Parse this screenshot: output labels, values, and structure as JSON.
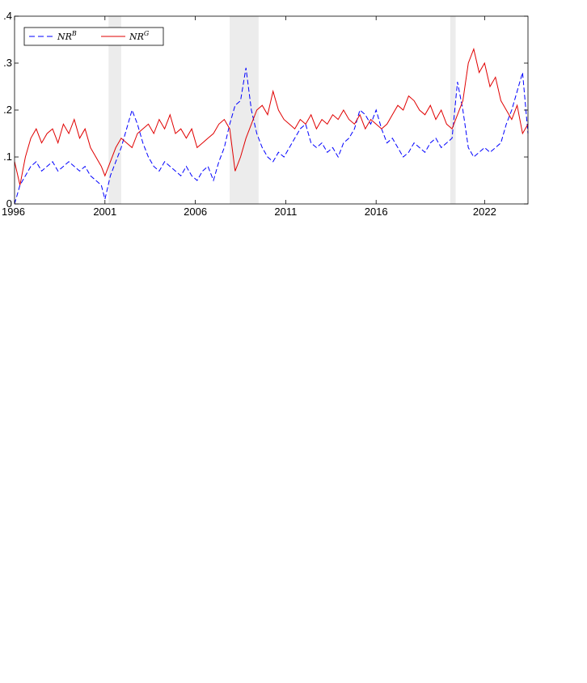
{
  "chart_data": {
    "type": "line",
    "title": "",
    "xlabel": "",
    "ylabel": "",
    "xlim": [
      1996,
      2024.4
    ],
    "ylim": [
      0,
      0.4
    ],
    "grid": false,
    "legend_position": "top-left",
    "x_ticks": [
      {
        "value": 1996,
        "label": "1996"
      },
      {
        "value": 2001,
        "label": "2001"
      },
      {
        "value": 2006,
        "label": "2006"
      },
      {
        "value": 2011,
        "label": "2011"
      },
      {
        "value": 2016,
        "label": "2016"
      },
      {
        "value": 2022,
        "label": "2022"
      }
    ],
    "y_ticks": [
      {
        "value": 0,
        "label": "0"
      },
      {
        "value": 0.1,
        "label": ".1"
      },
      {
        "value": 0.2,
        "label": ".2"
      },
      {
        "value": 0.3,
        "label": ".3"
      },
      {
        "value": 0.4,
        "label": ".4"
      }
    ],
    "shaded_periods": [
      {
        "start": 2001.2,
        "end": 2001.9
      },
      {
        "start": 2007.9,
        "end": 2009.5
      },
      {
        "start": 2020.1,
        "end": 2020.4
      }
    ],
    "shade_color": "#ececec",
    "series": [
      {
        "name": "NR",
        "name_superscript": "B",
        "color": "#0000ff",
        "dash": "dashed",
        "x": [
          1996.0,
          1996.3,
          1996.6,
          1996.9,
          1997.2,
          1997.5,
          1997.8,
          1998.1,
          1998.4,
          1998.7,
          1999.0,
          1999.3,
          1999.6,
          1999.9,
          2000.2,
          2000.5,
          2000.8,
          2001.0,
          2001.3,
          2001.6,
          2001.9,
          2002.2,
          2002.5,
          2002.8,
          2003.1,
          2003.4,
          2003.7,
          2004.0,
          2004.3,
          2004.6,
          2004.9,
          2005.2,
          2005.5,
          2005.8,
          2006.1,
          2006.4,
          2006.7,
          2007.0,
          2007.3,
          2007.6,
          2007.9,
          2008.2,
          2008.5,
          2008.8,
          2009.1,
          2009.4,
          2009.7,
          2010.0,
          2010.3,
          2010.6,
          2010.9,
          2011.2,
          2011.5,
          2011.8,
          2012.1,
          2012.4,
          2012.7,
          2013.0,
          2013.3,
          2013.6,
          2013.9,
          2014.2,
          2014.5,
          2014.8,
          2015.1,
          2015.4,
          2015.7,
          2016.0,
          2016.3,
          2016.6,
          2016.9,
          2017.2,
          2017.5,
          2017.8,
          2018.1,
          2018.4,
          2018.7,
          2019.0,
          2019.3,
          2019.6,
          2019.9,
          2020.2,
          2020.5,
          2020.8,
          2021.1,
          2021.4,
          2021.7,
          2022.0,
          2022.3,
          2022.6,
          2022.9,
          2023.2,
          2023.5,
          2023.8,
          2024.1,
          2024.4
        ],
        "values": [
          0.0,
          0.04,
          0.06,
          0.08,
          0.09,
          0.07,
          0.08,
          0.09,
          0.07,
          0.08,
          0.09,
          0.08,
          0.07,
          0.08,
          0.06,
          0.05,
          0.04,
          0.01,
          0.06,
          0.09,
          0.12,
          0.16,
          0.2,
          0.17,
          0.13,
          0.1,
          0.08,
          0.07,
          0.09,
          0.08,
          0.07,
          0.06,
          0.08,
          0.06,
          0.05,
          0.07,
          0.08,
          0.05,
          0.09,
          0.12,
          0.17,
          0.21,
          0.22,
          0.29,
          0.2,
          0.15,
          0.12,
          0.1,
          0.09,
          0.11,
          0.1,
          0.12,
          0.14,
          0.16,
          0.17,
          0.13,
          0.12,
          0.13,
          0.11,
          0.12,
          0.1,
          0.13,
          0.14,
          0.16,
          0.2,
          0.19,
          0.17,
          0.2,
          0.16,
          0.13,
          0.14,
          0.12,
          0.1,
          0.11,
          0.13,
          0.12,
          0.11,
          0.13,
          0.14,
          0.12,
          0.13,
          0.14,
          0.26,
          0.2,
          0.12,
          0.1,
          0.11,
          0.12,
          0.11,
          0.12,
          0.13,
          0.17,
          0.2,
          0.24,
          0.28,
          0.15
        ]
      },
      {
        "name": "NR",
        "name_superscript": "G",
        "color": "#e00000",
        "dash": "solid",
        "x": [
          1996.0,
          1996.3,
          1996.6,
          1996.9,
          1997.2,
          1997.5,
          1997.8,
          1998.1,
          1998.4,
          1998.7,
          1999.0,
          1999.3,
          1999.6,
          1999.9,
          2000.2,
          2000.5,
          2000.8,
          2001.0,
          2001.3,
          2001.6,
          2001.9,
          2002.2,
          2002.5,
          2002.8,
          2003.1,
          2003.4,
          2003.7,
          2004.0,
          2004.3,
          2004.6,
          2004.9,
          2005.2,
          2005.5,
          2005.8,
          2006.1,
          2006.4,
          2006.7,
          2007.0,
          2007.3,
          2007.6,
          2007.9,
          2008.2,
          2008.5,
          2008.8,
          2009.1,
          2009.4,
          2009.7,
          2010.0,
          2010.3,
          2010.6,
          2010.9,
          2011.2,
          2011.5,
          2011.8,
          2012.1,
          2012.4,
          2012.7,
          2013.0,
          2013.3,
          2013.6,
          2013.9,
          2014.2,
          2014.5,
          2014.8,
          2015.1,
          2015.4,
          2015.7,
          2016.0,
          2016.3,
          2016.6,
          2016.9,
          2017.2,
          2017.5,
          2017.8,
          2018.1,
          2018.4,
          2018.7,
          2019.0,
          2019.3,
          2019.6,
          2019.9,
          2020.2,
          2020.5,
          2020.8,
          2021.1,
          2021.4,
          2021.7,
          2022.0,
          2022.3,
          2022.6,
          2022.9,
          2023.2,
          2023.5,
          2023.8,
          2024.1,
          2024.4
        ],
        "values": [
          0.09,
          0.04,
          0.1,
          0.14,
          0.16,
          0.13,
          0.15,
          0.16,
          0.13,
          0.17,
          0.15,
          0.18,
          0.14,
          0.16,
          0.12,
          0.1,
          0.08,
          0.06,
          0.09,
          0.12,
          0.14,
          0.13,
          0.12,
          0.15,
          0.16,
          0.17,
          0.15,
          0.18,
          0.16,
          0.19,
          0.15,
          0.16,
          0.14,
          0.16,
          0.12,
          0.13,
          0.14,
          0.15,
          0.17,
          0.18,
          0.16,
          0.07,
          0.1,
          0.14,
          0.17,
          0.2,
          0.21,
          0.19,
          0.24,
          0.2,
          0.18,
          0.17,
          0.16,
          0.18,
          0.17,
          0.19,
          0.16,
          0.18,
          0.17,
          0.19,
          0.18,
          0.2,
          0.18,
          0.17,
          0.19,
          0.16,
          0.18,
          0.17,
          0.16,
          0.17,
          0.19,
          0.21,
          0.2,
          0.23,
          0.22,
          0.2,
          0.19,
          0.21,
          0.18,
          0.2,
          0.17,
          0.16,
          0.19,
          0.22,
          0.3,
          0.33,
          0.28,
          0.3,
          0.25,
          0.27,
          0.22,
          0.2,
          0.18,
          0.21,
          0.15,
          0.17
        ]
      }
    ]
  }
}
